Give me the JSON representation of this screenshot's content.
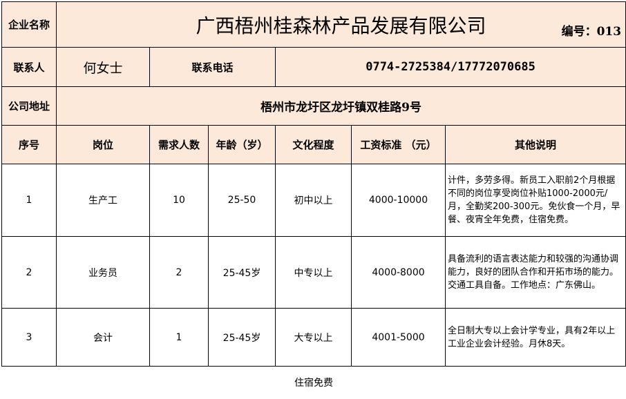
{
  "company": {
    "label": "企业名称",
    "name": "广西梧州桂森林产品发展有限公司",
    "code": "编号：013"
  },
  "contact": {
    "label": "联系人",
    "name": "何女士",
    "phone_label": "联系电话",
    "phone": "0774-2725384/17772070685"
  },
  "address": {
    "label": "公司地址",
    "value": "梧州市龙圩区龙圩镇双桂路9号"
  },
  "headers": [
    "序号",
    "岗位",
    "需求人数",
    "年龄（岁）",
    "文化程度",
    "工资标准  （元）",
    "其他说明"
  ],
  "rows": [
    [
      "1",
      "生产工",
      "10",
      "25-50",
      "初中以上",
      "4000-10000",
      "计件，多劳多得。新员工入职前2个月根据不同的岗位享受岗位补贴1000-2000元/月，全勤奖200-300元。免伙食一个月，早餐、夜宵全年免费，住宿免费。"
    ],
    [
      "2",
      "业务员",
      "2",
      "25-45岁",
      "中专以上",
      "4000-8000",
      "具备流利的语言表达能力和较强的沟通协调能力，良好的团队合作和开拓市场的能力。交通工具自备。工作地点：广东佛山。"
    ],
    [
      "3",
      "会计",
      "1",
      "25-45岁",
      "大专以上",
      "4001-5000",
      "全日制大专以上会计学专业，具有2年以上工业企业会计经验。月休8天。"
    ]
  ],
  "footer": "住宿免费",
  "colors": {
    "header_bg": "#fde9d9"
  }
}
